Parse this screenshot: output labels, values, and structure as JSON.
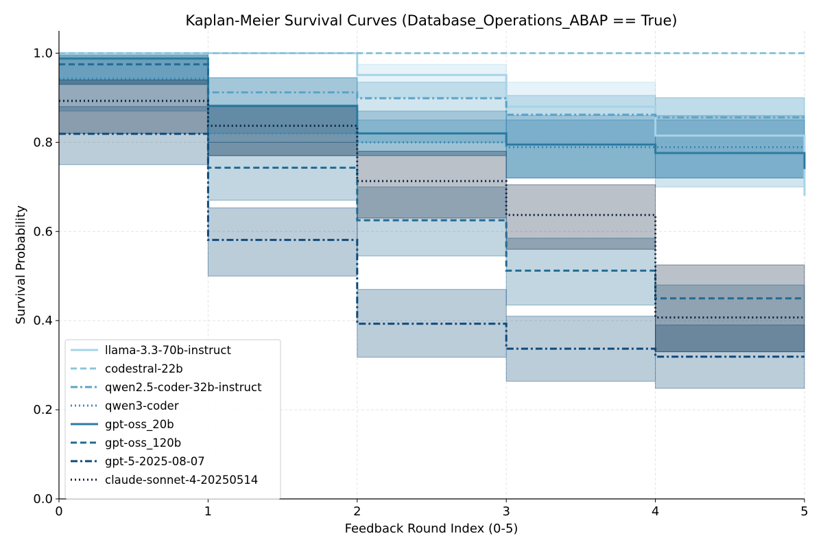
{
  "chart_data": {
    "type": "line",
    "step": true,
    "title": "Kaplan-Meier Survival Curves (Database_Operations_ABAP == True)",
    "xlabel": "Feedback Round Index (0-5)",
    "ylabel": "Survival Probability",
    "xlim": [
      0,
      5
    ],
    "ylim": [
      0,
      1.05
    ],
    "xticks": [
      "0",
      "1",
      "2",
      "3",
      "4",
      "5"
    ],
    "yticks": [
      "0.0",
      "0.2",
      "0.4",
      "0.6",
      "0.8",
      "1.0"
    ],
    "grid": true,
    "legend_position": "lower-left",
    "x": [
      0,
      1,
      2,
      3,
      4,
      5
    ],
    "series": [
      {
        "name": "llama-3.3-70b-instruct",
        "color": "#a6d4e6",
        "dash": "solid",
        "values": [
          1.0,
          1.0,
          0.951,
          0.88,
          0.815,
          0.68
        ],
        "ci_lower": [
          1.0,
          1.0,
          0.9,
          0.8,
          0.72,
          0.6
        ],
        "ci_upper": [
          1.0,
          1.0,
          0.975,
          0.935,
          0.9,
          0.75
        ]
      },
      {
        "name": "codestral-22b",
        "color": "#8cc4dc",
        "dash": "dashed",
        "values": [
          1.0,
          1.0,
          1.0,
          1.0,
          1.0,
          1.0
        ],
        "ci_lower": [
          1.0,
          1.0,
          1.0,
          1.0,
          1.0,
          1.0
        ],
        "ci_upper": [
          1.0,
          1.0,
          1.0,
          1.0,
          1.0,
          1.0
        ]
      },
      {
        "name": "qwen2.5-coder-32b-instruct",
        "color": "#5ba3c6",
        "dash": "dashdot",
        "values": [
          0.988,
          0.912,
          0.899,
          0.862,
          0.856,
          0.856
        ],
        "ci_lower": [
          0.93,
          0.82,
          0.8,
          0.72,
          0.7,
          0.7
        ],
        "ci_upper": [
          1.0,
          0.945,
          0.935,
          0.905,
          0.9,
          0.9
        ]
      },
      {
        "name": "qwen3-coder",
        "color": "#3d8ab3",
        "dash": "dotted",
        "values": [
          0.943,
          0.82,
          0.8,
          0.789,
          0.789,
          0.789
        ],
        "ci_lower": [
          0.87,
          0.77,
          0.77,
          0.72,
          0.72,
          0.72
        ],
        "ci_upper": [
          0.99,
          0.88,
          0.85,
          0.86,
          0.86,
          0.86
        ]
      },
      {
        "name": "gpt-oss_20b",
        "color": "#2b7aa1",
        "dash": "solid",
        "values": [
          0.988,
          0.882,
          0.82,
          0.795,
          0.776,
          0.74
        ],
        "ci_lower": [
          0.93,
          0.8,
          0.77,
          0.72,
          0.72,
          0.72
        ],
        "ci_upper": [
          1.0,
          0.945,
          0.87,
          0.85,
          0.85,
          0.85
        ]
      },
      {
        "name": "gpt-oss_120b",
        "color": "#236b93",
        "dash": "dashed",
        "values": [
          0.975,
          0.743,
          0.625,
          0.512,
          0.45,
          0.45
        ],
        "ci_lower": [
          0.93,
          0.67,
          0.545,
          0.435,
          0.33,
          0.33
        ],
        "ci_upper": [
          0.995,
          0.8,
          0.7,
          0.585,
          0.48,
          0.48
        ]
      },
      {
        "name": "gpt-5-2025-08-07",
        "color": "#0d4a7a",
        "dash": "dashdot",
        "values": [
          0.819,
          0.581,
          0.393,
          0.337,
          0.319,
          0.319
        ],
        "ci_lower": [
          0.75,
          0.5,
          0.318,
          0.264,
          0.248,
          0.248
        ],
        "ci_upper": [
          0.88,
          0.653,
          0.47,
          0.41,
          0.39,
          0.39
        ]
      },
      {
        "name": "claude-sonnet-4-20250514",
        "color": "#0a1f3d",
        "dash": "dotted",
        "values": [
          0.893,
          0.837,
          0.713,
          0.637,
          0.407,
          0.407
        ],
        "ci_lower": [
          0.82,
          0.77,
          0.63,
          0.56,
          0.33,
          0.33
        ],
        "ci_upper": [
          0.94,
          0.88,
          0.78,
          0.705,
          0.525,
          0.525
        ]
      }
    ]
  }
}
